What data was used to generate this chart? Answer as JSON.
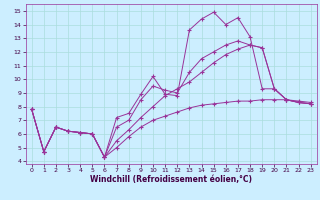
{
  "xlabel": "Windchill (Refroidissement éolien,°C)",
  "bg_color": "#cceeff",
  "grid_color": "#aadddd",
  "line_color": "#993399",
  "xlim": [
    -0.5,
    23.5
  ],
  "ylim": [
    3.8,
    15.5
  ],
  "xticks": [
    0,
    1,
    2,
    3,
    4,
    5,
    6,
    7,
    8,
    9,
    10,
    11,
    12,
    13,
    14,
    15,
    16,
    17,
    18,
    19,
    20,
    21,
    22,
    23
  ],
  "yticks": [
    4,
    5,
    6,
    7,
    8,
    9,
    10,
    11,
    12,
    13,
    14,
    15
  ],
  "series1_x": [
    0,
    1,
    2,
    3,
    4,
    5,
    6,
    7,
    8,
    9,
    10,
    11,
    12,
    13,
    14,
    15,
    16,
    17,
    18,
    19,
    20,
    21,
    22,
    23
  ],
  "series1_y": [
    7.8,
    4.7,
    6.5,
    6.2,
    6.1,
    6.0,
    4.3,
    7.2,
    7.5,
    8.9,
    10.2,
    8.9,
    8.8,
    13.6,
    14.4,
    14.9,
    14.0,
    14.5,
    13.1,
    9.3,
    9.3,
    8.5,
    8.3,
    8.2
  ],
  "series2_x": [
    0,
    1,
    2,
    3,
    4,
    5,
    6,
    7,
    8,
    9,
    10,
    11,
    12,
    13,
    14,
    15,
    16,
    17,
    18,
    19,
    20,
    21,
    22,
    23
  ],
  "series2_y": [
    7.8,
    4.7,
    6.5,
    6.2,
    6.1,
    6.0,
    4.3,
    6.5,
    7.0,
    8.5,
    9.5,
    9.2,
    9.0,
    10.5,
    11.5,
    12.0,
    12.5,
    12.8,
    12.5,
    12.3,
    9.3,
    8.5,
    8.3,
    8.2
  ],
  "series3_x": [
    0,
    1,
    2,
    3,
    4,
    5,
    6,
    7,
    8,
    9,
    10,
    11,
    12,
    13,
    14,
    15,
    16,
    17,
    18,
    19,
    20,
    21,
    22,
    23
  ],
  "series3_y": [
    7.8,
    4.7,
    6.5,
    6.2,
    6.1,
    6.0,
    4.3,
    5.5,
    6.3,
    7.2,
    8.0,
    8.8,
    9.3,
    9.8,
    10.5,
    11.2,
    11.8,
    12.2,
    12.5,
    12.3,
    9.3,
    8.5,
    8.3,
    8.2
  ],
  "series4_x": [
    0,
    1,
    2,
    3,
    4,
    5,
    6,
    7,
    8,
    9,
    10,
    11,
    12,
    13,
    14,
    15,
    16,
    17,
    18,
    19,
    20,
    21,
    22,
    23
  ],
  "series4_y": [
    7.8,
    4.7,
    6.5,
    6.2,
    6.1,
    6.0,
    4.3,
    5.0,
    5.8,
    6.5,
    7.0,
    7.3,
    7.6,
    7.9,
    8.1,
    8.2,
    8.3,
    8.4,
    8.4,
    8.5,
    8.5,
    8.5,
    8.4,
    8.3
  ]
}
